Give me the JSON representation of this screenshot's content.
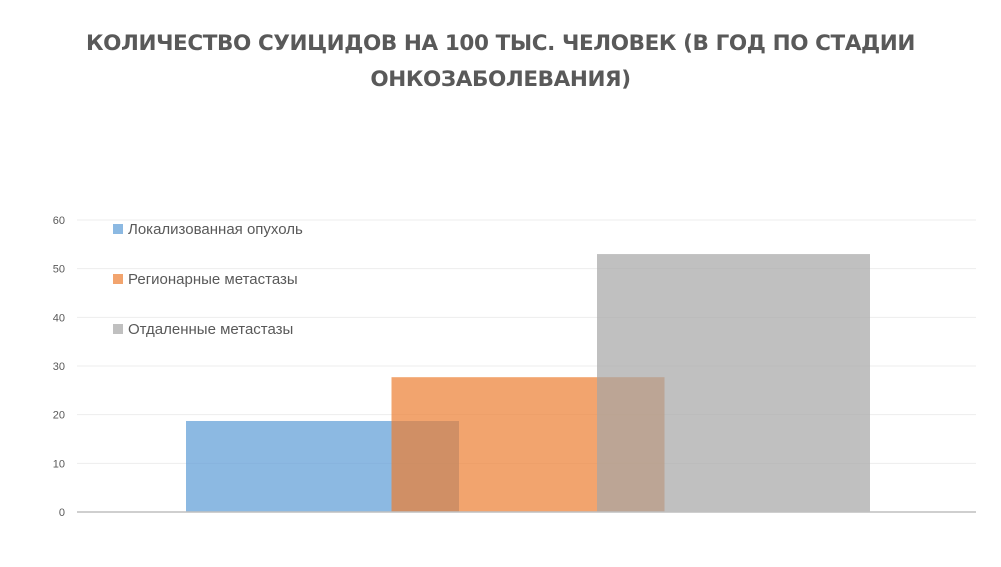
{
  "chart_data": {
    "type": "bar",
    "title_lines": [
      "КОЛИЧЕСТВО СУИЦИДОВ НА 100 ТЫС. ЧЕЛОВЕК (В ГОД ПО СТАДИИ",
      "ОНКОЗАБОЛЕВАНИЯ)"
    ],
    "ylim": [
      0,
      60
    ],
    "yticks": [
      0,
      10,
      20,
      30,
      40,
      50,
      60
    ],
    "grid": true,
    "legend_position": "top-left",
    "series": [
      {
        "name": "Локализованная опухоль",
        "value": 18.7,
        "color": "#5B9BD5"
      },
      {
        "name": "Регионарные метастазы",
        "value": 27.7,
        "color": "#ED7D31"
      },
      {
        "name": "Отдаленные метастазы",
        "value": 53.0,
        "color": "#A5A5A5"
      }
    ]
  }
}
